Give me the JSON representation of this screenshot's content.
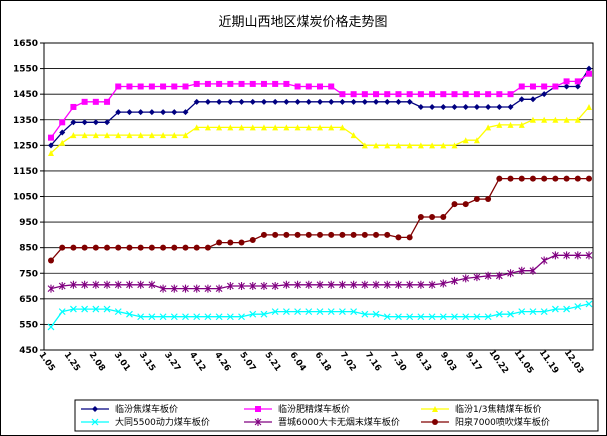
{
  "chart_data": {
    "type": "line",
    "title": "近期山西地区煤炭价格走势图",
    "ylim": [
      450,
      1650
    ],
    "ytick_step": 100,
    "grid": true,
    "legend_placement": "bottom",
    "x_labels": [
      "1.05",
      "1.25",
      "2.08",
      "3.01",
      "3.15",
      "3.27",
      "4.12",
      "4.26",
      "5.07",
      "5.21",
      "6.04",
      "6.18",
      "7.02",
      "7.16",
      "7.30",
      "8.13",
      "9.03",
      "9.17",
      "10.22",
      "11.05",
      "11.19",
      "12.03"
    ],
    "series": [
      {
        "name": "临汾焦煤车板价",
        "color": "#000080",
        "marker": "diamond",
        "values": [
          1250,
          1300,
          1340,
          1340,
          1340,
          1340,
          1380,
          1380,
          1380,
          1380,
          1380,
          1380,
          1380,
          1420,
          1420,
          1420,
          1420,
          1420,
          1420,
          1420,
          1420,
          1420,
          1420,
          1420,
          1420,
          1420,
          1420,
          1420,
          1420,
          1420,
          1420,
          1420,
          1420,
          1400,
          1400,
          1400,
          1400,
          1400,
          1400,
          1400,
          1400,
          1400,
          1430,
          1430,
          1450,
          1480,
          1480,
          1480,
          1550
        ]
      },
      {
        "name": "临汾肥精煤车板价",
        "color": "#ff00ff",
        "marker": "square",
        "values": [
          1280,
          1340,
          1400,
          1420,
          1420,
          1420,
          1480,
          1480,
          1480,
          1480,
          1480,
          1480,
          1480,
          1490,
          1490,
          1490,
          1490,
          1490,
          1490,
          1490,
          1490,
          1490,
          1480,
          1480,
          1480,
          1480,
          1450,
          1450,
          1450,
          1450,
          1450,
          1450,
          1450,
          1450,
          1450,
          1450,
          1450,
          1450,
          1450,
          1450,
          1450,
          1450,
          1480,
          1480,
          1480,
          1480,
          1500,
          1500,
          1530
        ]
      },
      {
        "name": "临汾1/3焦精煤车板价",
        "color": "#ffff00",
        "marker": "triangle",
        "values": [
          1220,
          1260,
          1290,
          1290,
          1290,
          1290,
          1290,
          1290,
          1290,
          1290,
          1290,
          1290,
          1290,
          1320,
          1320,
          1320,
          1320,
          1320,
          1320,
          1320,
          1320,
          1320,
          1320,
          1320,
          1320,
          1320,
          1320,
          1290,
          1250,
          1250,
          1250,
          1250,
          1250,
          1250,
          1250,
          1250,
          1250,
          1270,
          1270,
          1320,
          1330,
          1330,
          1330,
          1350,
          1350,
          1350,
          1350,
          1350,
          1400
        ]
      },
      {
        "name": "大同5500动力煤车板价",
        "color": "#00ffff",
        "marker": "cross",
        "values": [
          540,
          600,
          610,
          610,
          610,
          610,
          600,
          590,
          580,
          580,
          580,
          580,
          580,
          580,
          580,
          580,
          580,
          580,
          590,
          590,
          600,
          600,
          600,
          600,
          600,
          600,
          600,
          600,
          590,
          590,
          580,
          580,
          580,
          580,
          580,
          580,
          580,
          580,
          580,
          580,
          590,
          590,
          600,
          600,
          600,
          610,
          610,
          620,
          630
        ]
      },
      {
        "name": "晋城6000大卡无烟末煤车板价",
        "color": "#800080",
        "marker": "star",
        "values": [
          690,
          700,
          705,
          705,
          705,
          705,
          705,
          705,
          705,
          705,
          690,
          690,
          690,
          690,
          690,
          690,
          700,
          700,
          700,
          700,
          700,
          705,
          705,
          705,
          705,
          705,
          705,
          705,
          705,
          705,
          705,
          705,
          705,
          705,
          705,
          710,
          720,
          730,
          735,
          740,
          740,
          750,
          760,
          760,
          800,
          820,
          820,
          820,
          820
        ]
      },
      {
        "name": "阳泉7000喷吹煤车板价",
        "color": "#800000",
        "marker": "circle",
        "values": [
          800,
          850,
          850,
          850,
          850,
          850,
          850,
          850,
          850,
          850,
          850,
          850,
          850,
          850,
          850,
          870,
          870,
          870,
          880,
          900,
          900,
          900,
          900,
          900,
          900,
          900,
          900,
          900,
          900,
          900,
          900,
          890,
          890,
          970,
          970,
          970,
          1020,
          1020,
          1040,
          1040,
          1120,
          1120,
          1120,
          1120,
          1120,
          1120,
          1120,
          1120,
          1120
        ]
      }
    ]
  },
  "colors": {
    "plot_background": "#ffffff",
    "gridline": "#000000",
    "axis": "#000000"
  }
}
